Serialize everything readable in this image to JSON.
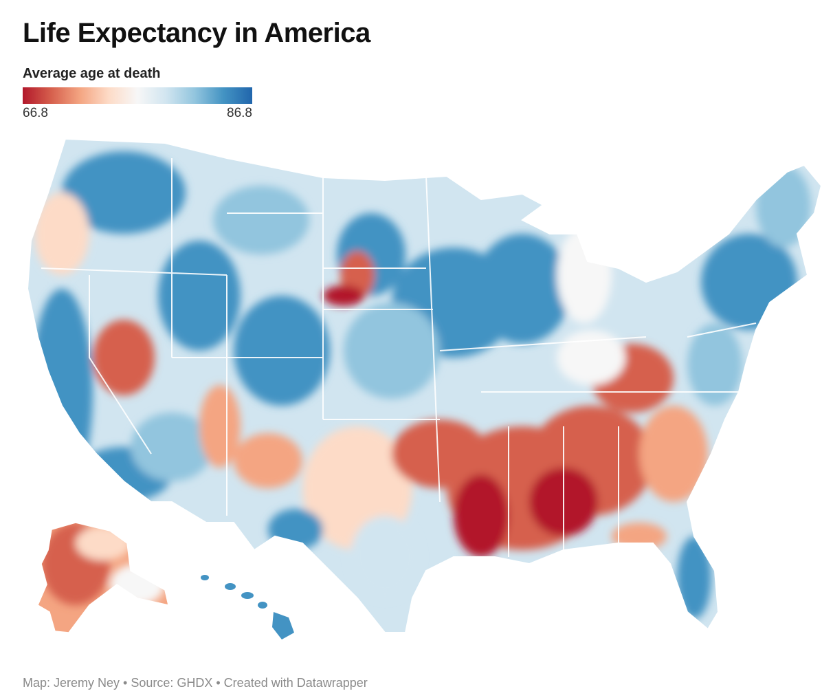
{
  "title": "Life Expectancy in America",
  "legend": {
    "title": "Average age at death",
    "min_label": "66.8",
    "max_label": "86.8",
    "colors": [
      "#b2182b",
      "#d6604d",
      "#f4a582",
      "#fddbc7",
      "#f7f7f7",
      "#d1e5f0",
      "#92c5de",
      "#4393c3",
      "#2166ac"
    ]
  },
  "map": {
    "regions": [
      {
        "name": "pacific-northwest",
        "tone": "blue"
      },
      {
        "name": "california-coast",
        "tone": "blue"
      },
      {
        "name": "nevada",
        "tone": "red"
      },
      {
        "name": "mountain-west",
        "tone": "blue"
      },
      {
        "name": "southwest",
        "tone": "mixed"
      },
      {
        "name": "great-plains",
        "tone": "blue"
      },
      {
        "name": "upper-midwest",
        "tone": "blue"
      },
      {
        "name": "texas",
        "tone": "mixed"
      },
      {
        "name": "deep-south",
        "tone": "red"
      },
      {
        "name": "appalachia",
        "tone": "red"
      },
      {
        "name": "northeast",
        "tone": "blue"
      },
      {
        "name": "florida",
        "tone": "blue"
      },
      {
        "name": "alaska",
        "tone": "red"
      },
      {
        "name": "hawaii",
        "tone": "blue"
      }
    ]
  },
  "credit": "Map: Jeremy Ney • Source: GHDX • Created with Datawrapper"
}
